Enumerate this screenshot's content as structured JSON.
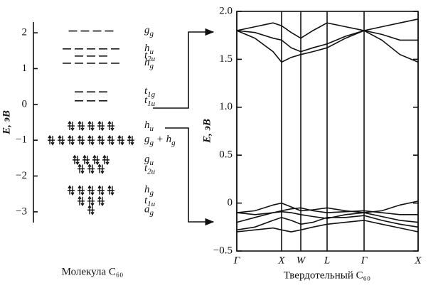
{
  "chart_data": [
    {
      "type": "levels",
      "ylabel": "E, эВ",
      "xlabel": "Молекула C₆₀",
      "ylim": [
        -3.3,
        2.3
      ],
      "yticks": [
        2,
        1,
        0,
        {
          "value": -1,
          "label": "−1"
        },
        {
          "value": -2,
          "label": "−2"
        },
        {
          "value": -3,
          "label": "−3"
        }
      ],
      "levels": [
        {
          "label": [
            "g",
            "g"
          ],
          "energy": 2.05,
          "degeneracy": 4,
          "occupied": false
        },
        {
          "label": [
            "h",
            "u"
          ],
          "energy": 1.55,
          "degeneracy": 5,
          "occupied": false
        },
        {
          "label": [
            "t",
            "2u"
          ],
          "energy": 1.35,
          "degeneracy": 3,
          "occupied": false
        },
        {
          "label": [
            "h",
            "g"
          ],
          "energy": 1.15,
          "degeneracy": 5,
          "occupied": false
        },
        {
          "label": [
            "t",
            "1g"
          ],
          "energy": 0.35,
          "degeneracy": 3,
          "occupied": false
        },
        {
          "label": [
            "t",
            "1u"
          ],
          "energy": 0.1,
          "degeneracy": 3,
          "occupied": false
        },
        {
          "label": [
            "h",
            "u"
          ],
          "energy": -0.6,
          "degeneracy": 5,
          "occupied": true
        },
        {
          "label": [
            "g",
            "g",
            " + h",
            "g"
          ],
          "energy": -1.0,
          "degeneracy": 9,
          "occupied": true
        },
        {
          "label": [
            "g",
            "u"
          ],
          "energy": -1.55,
          "degeneracy": 4,
          "occupied": true
        },
        {
          "label": [
            "t",
            "2u"
          ],
          "energy": -1.8,
          "degeneracy": 3,
          "occupied": true
        },
        {
          "label": [
            "h",
            "g"
          ],
          "energy": -2.4,
          "degeneracy": 5,
          "occupied": true
        },
        {
          "label": [
            "t",
            "1u"
          ],
          "energy": -2.7,
          "degeneracy": 3,
          "occupied": true
        },
        {
          "label": [
            "a",
            "g"
          ],
          "energy": -2.95,
          "degeneracy": 1,
          "occupied": true
        }
      ]
    },
    {
      "type": "line",
      "ylabel": "E, эВ",
      "xlabel": "Твердотельный C₆₀",
      "color": "#111111",
      "xlim": [
        0,
        1
      ],
      "xticks": [
        {
          "value": 0,
          "label": "Γ"
        },
        {
          "value": 0.247,
          "label": "X"
        },
        {
          "value": 0.353,
          "label": "W"
        },
        {
          "value": 0.498,
          "label": "L"
        },
        {
          "value": 0.702,
          "label": "Γ"
        },
        {
          "value": 1,
          "label": "X"
        }
      ],
      "grid": true,
      "ylim": [
        -0.5,
        2.0
      ],
      "yticks": [
        {
          "value": 2,
          "label": "2.0"
        },
        {
          "value": 1.5,
          "label": "1.5"
        },
        {
          "value": 1,
          "label": "1.0"
        },
        {
          "value": 0.5,
          "label": "0.5"
        },
        0,
        {
          "value": -0.5,
          "label": "−0.5"
        }
      ],
      "x": [
        0,
        0.1,
        0.2,
        0.247,
        0.3,
        0.353,
        0.42,
        0.498,
        0.6,
        0.702,
        0.8,
        0.9,
        1.0
      ],
      "series": [
        {
          "values": [
            1.8,
            1.84,
            1.88,
            1.85,
            1.78,
            1.72,
            1.8,
            1.88,
            1.84,
            1.8,
            1.84,
            1.88,
            1.92
          ]
        },
        {
          "values": [
            1.8,
            1.78,
            1.72,
            1.7,
            1.62,
            1.58,
            1.62,
            1.66,
            1.74,
            1.8,
            1.76,
            1.7,
            1.7
          ]
        },
        {
          "values": [
            1.8,
            1.72,
            1.58,
            1.47,
            1.52,
            1.55,
            1.58,
            1.62,
            1.72,
            1.8,
            1.7,
            1.55,
            1.47
          ]
        },
        {
          "values": [
            -0.1,
            -0.08,
            -0.02,
            0.0,
            -0.04,
            -0.08,
            -0.07,
            -0.05,
            -0.08,
            -0.1,
            -0.08,
            -0.02,
            0.02
          ]
        },
        {
          "values": [
            -0.1,
            -0.12,
            -0.1,
            -0.08,
            -0.06,
            -0.05,
            -0.08,
            -0.1,
            -0.09,
            -0.08,
            -0.1,
            -0.12,
            -0.12
          ]
        },
        {
          "values": [
            -0.2,
            -0.15,
            -0.1,
            -0.09,
            -0.1,
            -0.12,
            -0.14,
            -0.16,
            -0.12,
            -0.1,
            -0.14,
            -0.18,
            -0.2
          ]
        },
        {
          "values": [
            -0.28,
            -0.25,
            -0.18,
            -0.15,
            -0.18,
            -0.22,
            -0.2,
            -0.15,
            -0.15,
            -0.13,
            -0.18,
            -0.22,
            -0.25
          ]
        },
        {
          "values": [
            -0.3,
            -0.28,
            -0.26,
            -0.28,
            -0.3,
            -0.28,
            -0.25,
            -0.22,
            -0.2,
            -0.18,
            -0.22,
            -0.26,
            -0.3
          ]
        }
      ]
    }
  ]
}
